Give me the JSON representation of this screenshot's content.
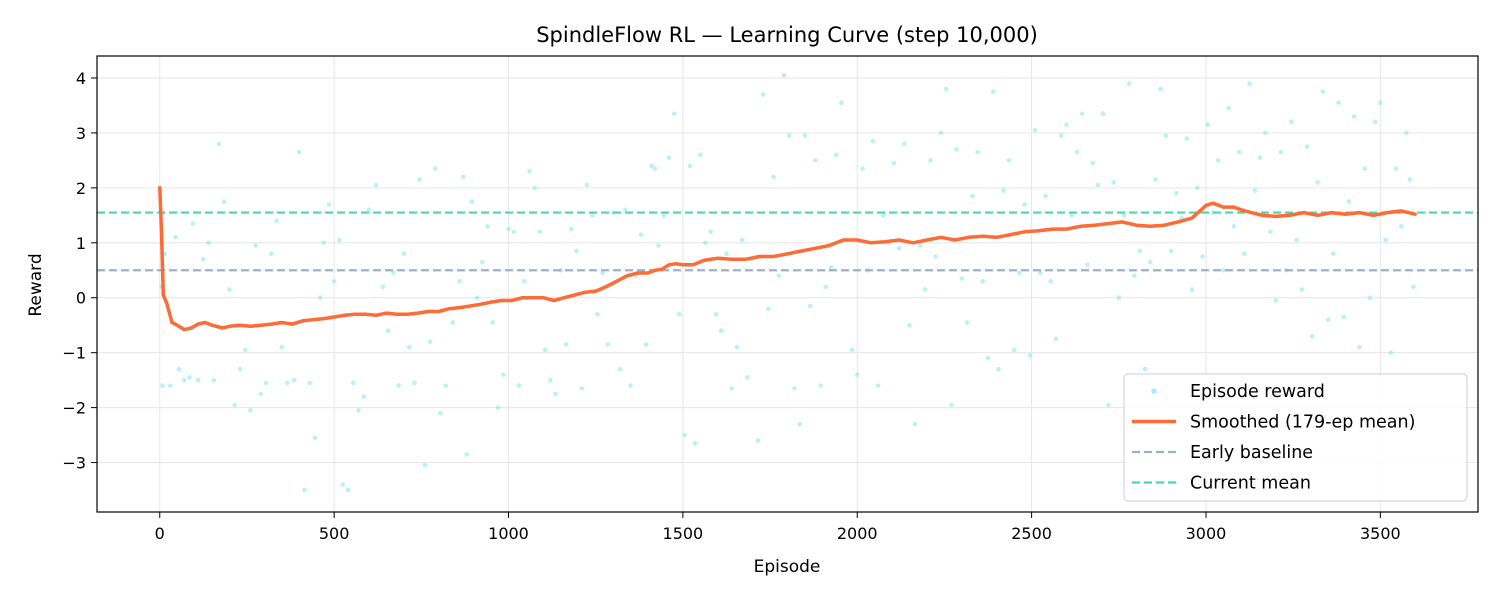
{
  "chart_data": {
    "type": "scatter",
    "title": "SpindleFlow RL — Learning Curve (step 10,000)",
    "xlabel": "Episode",
    "ylabel": "Reward",
    "xlim": [
      -180,
      3780
    ],
    "ylim": [
      -3.9,
      4.4
    ],
    "xticks": [
      0,
      500,
      1000,
      1500,
      2000,
      2500,
      3000,
      3500
    ],
    "yticks": [
      -3,
      -2,
      -1,
      0,
      1,
      2,
      3,
      4
    ],
    "grid": true,
    "legend_position": "lower-right",
    "colors": {
      "episode": "#7fe6f5",
      "smoothed": "#ff6b35",
      "early_baseline": "#a0b0c6",
      "current_mean": "#4fd6a8"
    },
    "series": [
      {
        "name": "Episode reward",
        "kind": "scatter",
        "points": [
          [
            0,
            2.0
          ],
          [
            5,
            0.2
          ],
          [
            10,
            1.55
          ],
          [
            15,
            0.8
          ],
          [
            8,
            -1.6
          ],
          [
            30,
            -1.6
          ],
          [
            45,
            1.1
          ],
          [
            55,
            -1.3
          ],
          [
            70,
            -1.5
          ],
          [
            85,
            -1.45
          ],
          [
            95,
            1.35
          ],
          [
            110,
            -1.5
          ],
          [
            125,
            0.7
          ],
          [
            140,
            1.0
          ],
          [
            155,
            -1.5
          ],
          [
            170,
            2.8
          ],
          [
            185,
            1.75
          ],
          [
            200,
            0.15
          ],
          [
            215,
            -1.95
          ],
          [
            230,
            -1.3
          ],
          [
            245,
            -0.95
          ],
          [
            260,
            -2.05
          ],
          [
            275,
            0.95
          ],
          [
            290,
            -1.75
          ],
          [
            305,
            -1.55
          ],
          [
            320,
            0.8
          ],
          [
            335,
            1.4
          ],
          [
            350,
            -0.9
          ],
          [
            365,
            -1.55
          ],
          [
            385,
            -1.5
          ],
          [
            400,
            2.65
          ],
          [
            415,
            -3.5
          ],
          [
            430,
            -1.55
          ],
          [
            445,
            -2.55
          ],
          [
            460,
            0.0
          ],
          [
            470,
            1.0
          ],
          [
            485,
            1.7
          ],
          [
            500,
            0.3
          ],
          [
            515,
            1.05
          ],
          [
            525,
            -3.4
          ],
          [
            540,
            -3.5
          ],
          [
            555,
            -1.55
          ],
          [
            570,
            -2.05
          ],
          [
            585,
            -1.8
          ],
          [
            600,
            1.6
          ],
          [
            620,
            2.05
          ],
          [
            640,
            0.2
          ],
          [
            655,
            -0.6
          ],
          [
            670,
            0.45
          ],
          [
            685,
            -1.6
          ],
          [
            700,
            0.8
          ],
          [
            715,
            -0.9
          ],
          [
            730,
            -1.55
          ],
          [
            745,
            2.15
          ],
          [
            760,
            -3.05
          ],
          [
            775,
            -0.8
          ],
          [
            790,
            2.35
          ],
          [
            805,
            -2.1
          ],
          [
            820,
            -1.6
          ],
          [
            840,
            -0.45
          ],
          [
            860,
            0.3
          ],
          [
            870,
            2.2
          ],
          [
            880,
            -2.85
          ],
          [
            895,
            1.75
          ],
          [
            910,
            0.0
          ],
          [
            925,
            0.65
          ],
          [
            940,
            1.3
          ],
          [
            955,
            -0.45
          ],
          [
            970,
            -2.0
          ],
          [
            985,
            -1.4
          ],
          [
            1000,
            1.25
          ],
          [
            1015,
            1.2
          ],
          [
            1030,
            -1.6
          ],
          [
            1045,
            0.3
          ],
          [
            1060,
            2.3
          ],
          [
            1075,
            2.0
          ],
          [
            1090,
            1.2
          ],
          [
            1105,
            -0.95
          ],
          [
            1120,
            -1.5
          ],
          [
            1135,
            -1.75
          ],
          [
            1150,
            0.5
          ],
          [
            1165,
            -0.85
          ],
          [
            1180,
            1.25
          ],
          [
            1195,
            0.85
          ],
          [
            1210,
            -1.65
          ],
          [
            1225,
            2.05
          ],
          [
            1240,
            1.5
          ],
          [
            1255,
            -0.3
          ],
          [
            1270,
            0.45
          ],
          [
            1285,
            -0.85
          ],
          [
            1300,
            1.55
          ],
          [
            1320,
            -1.3
          ],
          [
            1335,
            1.6
          ],
          [
            1350,
            -1.6
          ],
          [
            1365,
            0.4
          ],
          [
            1380,
            1.15
          ],
          [
            1395,
            -0.85
          ],
          [
            1410,
            2.4
          ],
          [
            1420,
            2.35
          ],
          [
            1430,
            0.95
          ],
          [
            1445,
            1.5
          ],
          [
            1460,
            2.55
          ],
          [
            1475,
            3.35
          ],
          [
            1490,
            -0.3
          ],
          [
            1505,
            -2.5
          ],
          [
            1520,
            2.4
          ],
          [
            1535,
            -2.65
          ],
          [
            1550,
            2.6
          ],
          [
            1565,
            1.0
          ],
          [
            1580,
            1.2
          ],
          [
            1595,
            -0.3
          ],
          [
            1610,
            -0.6
          ],
          [
            1625,
            0.8
          ],
          [
            1640,
            -1.65
          ],
          [
            1655,
            -0.9
          ],
          [
            1670,
            1.05
          ],
          [
            1685,
            -1.45
          ],
          [
            1700,
            0.7
          ],
          [
            1715,
            -2.6
          ],
          [
            1730,
            3.7
          ],
          [
            1745,
            -0.2
          ],
          [
            1760,
            2.2
          ],
          [
            1775,
            0.4
          ],
          [
            1790,
            4.05
          ],
          [
            1805,
            2.95
          ],
          [
            1820,
            -1.65
          ],
          [
            1835,
            -2.3
          ],
          [
            1850,
            2.95
          ],
          [
            1865,
            -0.15
          ],
          [
            1880,
            2.5
          ],
          [
            1895,
            -1.6
          ],
          [
            1910,
            0.2
          ],
          [
            1925,
            0.55
          ],
          [
            1940,
            2.6
          ],
          [
            1955,
            3.55
          ],
          [
            1970,
            1.05
          ],
          [
            1985,
            -0.95
          ],
          [
            2000,
            -1.4
          ],
          [
            2015,
            2.35
          ],
          [
            2030,
            0.5
          ],
          [
            2045,
            2.85
          ],
          [
            2060,
            -1.6
          ],
          [
            2075,
            1.5
          ],
          [
            2090,
            1.0
          ],
          [
            2105,
            2.45
          ],
          [
            2120,
            0.9
          ],
          [
            2135,
            2.8
          ],
          [
            2150,
            -0.5
          ],
          [
            2165,
            -2.3
          ],
          [
            2180,
            0.95
          ],
          [
            2195,
            0.15
          ],
          [
            2210,
            2.5
          ],
          [
            2225,
            0.75
          ],
          [
            2240,
            3.0
          ],
          [
            2255,
            3.8
          ],
          [
            2270,
            -1.95
          ],
          [
            2285,
            2.7
          ],
          [
            2300,
            0.35
          ],
          [
            2315,
            -0.45
          ],
          [
            2330,
            1.85
          ],
          [
            2345,
            2.65
          ],
          [
            2360,
            0.3
          ],
          [
            2375,
            -1.1
          ],
          [
            2390,
            3.75
          ],
          [
            2405,
            -1.3
          ],
          [
            2420,
            1.95
          ],
          [
            2435,
            2.5
          ],
          [
            2450,
            -0.95
          ],
          [
            2465,
            0.45
          ],
          [
            2480,
            1.7
          ],
          [
            2495,
            -1.05
          ],
          [
            2510,
            3.05
          ],
          [
            2525,
            0.45
          ],
          [
            2540,
            1.85
          ],
          [
            2555,
            0.3
          ],
          [
            2570,
            -0.75
          ],
          [
            2585,
            2.95
          ],
          [
            2600,
            3.15
          ],
          [
            2615,
            1.5
          ],
          [
            2630,
            2.65
          ],
          [
            2645,
            3.35
          ],
          [
            2660,
            0.6
          ],
          [
            2675,
            2.45
          ],
          [
            2690,
            2.05
          ],
          [
            2705,
            3.35
          ],
          [
            2720,
            -1.95
          ],
          [
            2735,
            2.1
          ],
          [
            2750,
            0.0
          ],
          [
            2765,
            1.5
          ],
          [
            2780,
            3.9
          ],
          [
            2795,
            0.4
          ],
          [
            2810,
            0.85
          ],
          [
            2825,
            -1.3
          ],
          [
            2840,
            0.65
          ],
          [
            2855,
            2.15
          ],
          [
            2870,
            3.8
          ],
          [
            2885,
            2.95
          ],
          [
            2900,
            0.85
          ],
          [
            2915,
            1.9
          ],
          [
            2930,
            1.45
          ],
          [
            2945,
            2.9
          ],
          [
            2960,
            0.15
          ],
          [
            2975,
            2.0
          ],
          [
            2990,
            0.75
          ],
          [
            3005,
            3.15
          ],
          [
            3020,
            1.55
          ],
          [
            3035,
            2.5
          ],
          [
            3050,
            0.5
          ],
          [
            3065,
            3.45
          ],
          [
            3080,
            1.3
          ],
          [
            3095,
            2.65
          ],
          [
            3110,
            0.8
          ],
          [
            3125,
            3.9
          ],
          [
            3140,
            1.95
          ],
          [
            3155,
            2.55
          ],
          [
            3170,
            3.0
          ],
          [
            3185,
            1.2
          ],
          [
            3200,
            -0.05
          ],
          [
            3215,
            2.65
          ],
          [
            3230,
            0.5
          ],
          [
            3245,
            3.2
          ],
          [
            3260,
            1.05
          ],
          [
            3275,
            0.15
          ],
          [
            3290,
            2.75
          ],
          [
            3305,
            -0.7
          ],
          [
            3320,
            2.1
          ],
          [
            3335,
            3.75
          ],
          [
            3350,
            -0.4
          ],
          [
            3365,
            0.8
          ],
          [
            3380,
            3.55
          ],
          [
            3395,
            -0.35
          ],
          [
            3410,
            1.75
          ],
          [
            3425,
            3.3
          ],
          [
            3440,
            -0.9
          ],
          [
            3455,
            2.35
          ],
          [
            3470,
            0.0
          ],
          [
            3485,
            3.2
          ],
          [
            3500,
            3.55
          ],
          [
            3515,
            1.05
          ],
          [
            3530,
            -1.0
          ],
          [
            3545,
            2.35
          ],
          [
            3560,
            1.3
          ],
          [
            3575,
            3.0
          ],
          [
            3585,
            2.15
          ],
          [
            3595,
            0.2
          ]
        ]
      },
      {
        "name": "Smoothed (179-ep mean)",
        "kind": "line",
        "x": [
          0,
          5,
          10,
          20,
          35,
          50,
          70,
          90,
          110,
          130,
          150,
          180,
          200,
          230,
          260,
          290,
          320,
          350,
          380,
          410,
          440,
          470,
          500,
          530,
          560,
          590,
          620,
          650,
          680,
          710,
          740,
          770,
          800,
          830,
          860,
          890,
          920,
          950,
          980,
          1010,
          1040,
          1070,
          1100,
          1130,
          1160,
          1190,
          1220,
          1250,
          1280,
          1310,
          1340,
          1370,
          1400,
          1420,
          1440,
          1460,
          1480,
          1500,
          1530,
          1560,
          1600,
          1640,
          1680,
          1720,
          1760,
          1800,
          1840,
          1880,
          1920,
          1960,
          2000,
          2040,
          2080,
          2120,
          2160,
          2200,
          2240,
          2280,
          2320,
          2360,
          2400,
          2440,
          2480,
          2520,
          2560,
          2600,
          2640,
          2680,
          2720,
          2760,
          2800,
          2840,
          2880,
          2920,
          2960,
          3000,
          3020,
          3050,
          3080,
          3100,
          3130,
          3160,
          3200,
          3240,
          3280,
          3320,
          3360,
          3400,
          3440,
          3480,
          3520,
          3560,
          3600
        ],
        "y": [
          2.0,
          1.2,
          0.05,
          -0.1,
          -0.45,
          -0.5,
          -0.58,
          -0.55,
          -0.48,
          -0.45,
          -0.5,
          -0.55,
          -0.52,
          -0.5,
          -0.52,
          -0.5,
          -0.48,
          -0.45,
          -0.48,
          -0.42,
          -0.4,
          -0.38,
          -0.35,
          -0.32,
          -0.3,
          -0.3,
          -0.32,
          -0.28,
          -0.3,
          -0.3,
          -0.28,
          -0.25,
          -0.25,
          -0.2,
          -0.18,
          -0.15,
          -0.12,
          -0.08,
          -0.05,
          -0.05,
          0.0,
          0.0,
          0.0,
          -0.05,
          0.0,
          0.05,
          0.1,
          0.12,
          0.2,
          0.3,
          0.4,
          0.45,
          0.45,
          0.5,
          0.52,
          0.6,
          0.62,
          0.6,
          0.6,
          0.68,
          0.72,
          0.7,
          0.7,
          0.75,
          0.75,
          0.8,
          0.85,
          0.9,
          0.95,
          1.05,
          1.05,
          1.0,
          1.02,
          1.05,
          1.0,
          1.05,
          1.1,
          1.05,
          1.1,
          1.12,
          1.1,
          1.15,
          1.2,
          1.22,
          1.25,
          1.25,
          1.3,
          1.32,
          1.35,
          1.38,
          1.32,
          1.3,
          1.32,
          1.38,
          1.45,
          1.68,
          1.72,
          1.65,
          1.65,
          1.6,
          1.55,
          1.5,
          1.48,
          1.5,
          1.55,
          1.5,
          1.55,
          1.52,
          1.55,
          1.5,
          1.55,
          1.58,
          1.52
        ]
      },
      {
        "name": "Early baseline",
        "kind": "hline",
        "y": 0.5
      },
      {
        "name": "Current mean",
        "kind": "hline",
        "y": 1.55
      }
    ]
  }
}
